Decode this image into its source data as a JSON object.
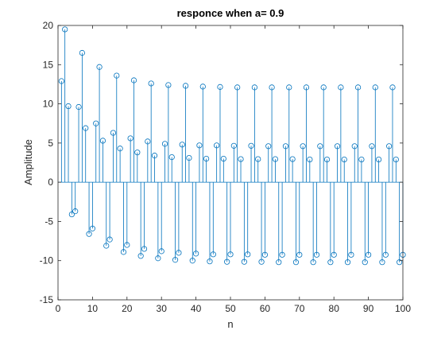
{
  "chart_data": {
    "type": "stem",
    "title": "responce when a= 0.9",
    "xlabel": "n",
    "ylabel": "Amplitude",
    "xlim": [
      0,
      100
    ],
    "ylim": [
      -15,
      20
    ],
    "x_ticks": [
      "0",
      "10",
      "20",
      "30",
      "40",
      "50",
      "60",
      "70",
      "80",
      "90",
      "100"
    ],
    "y_ticks": [
      "-15",
      "-10",
      "-5",
      "0",
      "5",
      "10",
      "15",
      "20"
    ],
    "grid": false,
    "series": [
      {
        "color": "#0072BD",
        "marker": "circle",
        "x": [
          1,
          2,
          3,
          4,
          5,
          6,
          7,
          8,
          9,
          10,
          11,
          12,
          13,
          14,
          15,
          16,
          17,
          18,
          19,
          20,
          21,
          22,
          23,
          24,
          25,
          26,
          27,
          28,
          29,
          30,
          31,
          32,
          33,
          34,
          35,
          36,
          37,
          38,
          39,
          40,
          41,
          42,
          43,
          44,
          45,
          46,
          47,
          48,
          49,
          50,
          51,
          52,
          53,
          54,
          55,
          56,
          57,
          58,
          59,
          60,
          61,
          62,
          63,
          64,
          65,
          66,
          67,
          68,
          69,
          70,
          71,
          72,
          73,
          74,
          75,
          76,
          77,
          78,
          79,
          80,
          81,
          82,
          83,
          84,
          85,
          86,
          87,
          88,
          89,
          90,
          91,
          92,
          93,
          94,
          95,
          96,
          97,
          98,
          99,
          100
        ],
        "y": [
          12.9,
          19.5,
          9.7,
          -4.1,
          -3.7,
          9.6,
          16.5,
          6.9,
          -6.6,
          -5.9,
          7.5,
          14.7,
          5.3,
          -8.1,
          -7.3,
          6.3,
          13.6,
          4.3,
          -8.9,
          -8.0,
          5.6,
          13.0,
          3.8,
          -9.4,
          -8.5,
          5.2,
          12.6,
          3.4,
          -9.7,
          -8.8,
          4.9,
          12.4,
          3.2,
          -9.9,
          -9.0,
          4.8,
          12.3,
          3.1,
          -10.0,
          -9.1,
          4.7,
          12.2,
          3.0,
          -10.1,
          -9.2,
          4.7,
          12.15,
          3.0,
          -10.15,
          -9.2,
          4.65,
          12.1,
          2.95,
          -10.15,
          -9.2,
          4.65,
          12.1,
          2.95,
          -10.15,
          -9.25,
          4.6,
          12.1,
          2.95,
          -10.2,
          -9.25,
          4.6,
          12.1,
          2.95,
          -10.2,
          -9.25,
          4.6,
          12.1,
          2.9,
          -10.2,
          -9.25,
          4.6,
          12.1,
          2.9,
          -10.2,
          -9.25,
          4.6,
          12.1,
          2.9,
          -10.2,
          -9.25,
          4.6,
          12.1,
          2.9,
          -10.2,
          -9.25,
          4.6,
          12.1,
          2.9,
          -10.2,
          -9.25,
          4.6,
          12.1,
          2.9,
          -10.2,
          -9.25
        ]
      }
    ]
  }
}
